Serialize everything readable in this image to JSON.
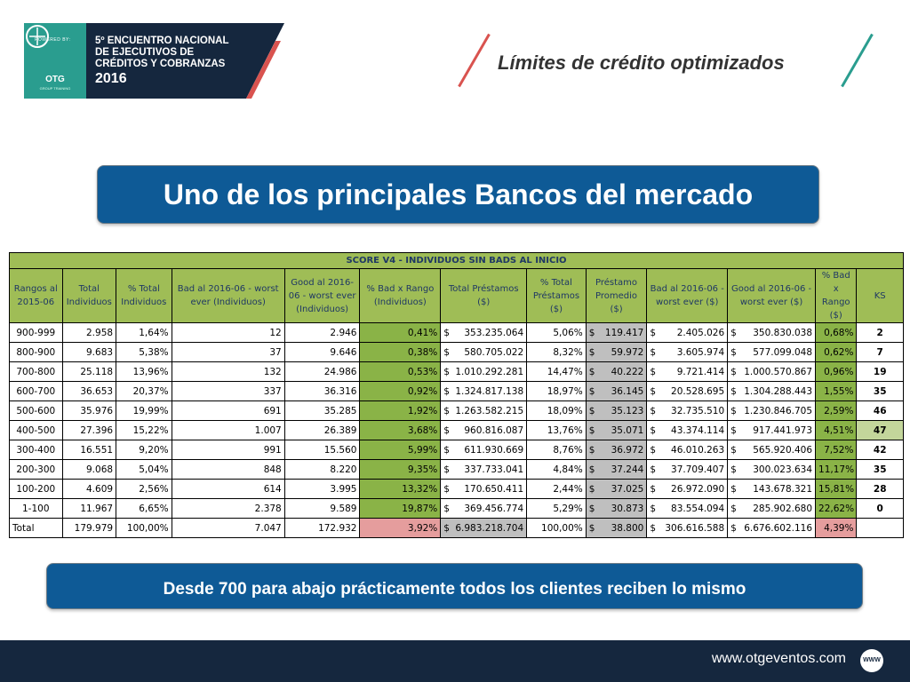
{
  "logo": {
    "powered_by": "POWERED BY:",
    "brand": "OTG",
    "brand_sub": "GROUP TRAINING",
    "event_lines": [
      "5º ENCUENTRO NACIONAL",
      "DE EJECUTIVOS DE",
      "CRÉDITOS Y COBRANZAS"
    ],
    "event_year": "2016"
  },
  "header": {
    "title": "Límites de crédito optimizados"
  },
  "banner_top": "Uno de los principales Bancos del mercado",
  "table": {
    "title": "SCORE V4 - INDIVIDUOS SIN BADS AL INICIO",
    "columns": [
      "Rangos al 2015-06",
      "Total Individuos",
      "% Total Individuos",
      "Bad al 2016-06 - worst ever (Individuos)",
      "Good al 2016-06 - worst ever (Individuos)",
      "% Bad x Rango (Individuos)",
      "Total Préstamos ($)",
      "% Total Préstamos ($)",
      "Préstamo Promedio ($)",
      "Bad al 2016-06 - worst ever ($)",
      "Good al 2016-06 - worst ever ($)",
      "% Bad x Rango ($)",
      "KS"
    ],
    "rows": [
      [
        "900-999",
        "2.958",
        "1,64%",
        "12",
        "2.946",
        "0,41%",
        "353.235.064",
        "5,06%",
        "119.417",
        "2.405.026",
        "350.830.038",
        "0,68%",
        "2"
      ],
      [
        "800-900",
        "9.683",
        "5,38%",
        "37",
        "9.646",
        "0,38%",
        "580.705.022",
        "8,32%",
        "59.972",
        "3.605.974",
        "577.099.048",
        "0,62%",
        "7"
      ],
      [
        "700-800",
        "25.118",
        "13,96%",
        "132",
        "24.986",
        "0,53%",
        "1.010.292.281",
        "14,47%",
        "40.222",
        "9.721.414",
        "1.000.570.867",
        "0,96%",
        "19"
      ],
      [
        "600-700",
        "36.653",
        "20,37%",
        "337",
        "36.316",
        "0,92%",
        "1.324.817.138",
        "18,97%",
        "36.145",
        "20.528.695",
        "1.304.288.443",
        "1,55%",
        "35"
      ],
      [
        "500-600",
        "35.976",
        "19,99%",
        "691",
        "35.285",
        "1,92%",
        "1.263.582.215",
        "18,09%",
        "35.123",
        "32.735.510",
        "1.230.846.705",
        "2,59%",
        "46"
      ],
      [
        "400-500",
        "27.396",
        "15,22%",
        "1.007",
        "26.389",
        "3,68%",
        "960.816.087",
        "13,76%",
        "35.071",
        "43.374.114",
        "917.441.973",
        "4,51%",
        "47"
      ],
      [
        "300-400",
        "16.551",
        "9,20%",
        "991",
        "15.560",
        "5,99%",
        "611.930.669",
        "8,76%",
        "36.972",
        "46.010.263",
        "565.920.406",
        "7,52%",
        "42"
      ],
      [
        "200-300",
        "9.068",
        "5,04%",
        "848",
        "8.220",
        "9,35%",
        "337.733.041",
        "4,84%",
        "37.244",
        "37.709.407",
        "300.023.634",
        "11,17%",
        "35"
      ],
      [
        "100-200",
        "4.609",
        "2,56%",
        "614",
        "3.995",
        "13,32%",
        "170.650.411",
        "2,44%",
        "37.025",
        "26.972.090",
        "143.678.321",
        "15,81%",
        "28"
      ],
      [
        "1-100",
        "11.967",
        "6,65%",
        "2.378",
        "9.589",
        "19,87%",
        "369.456.774",
        "5,29%",
        "30.873",
        "83.554.094",
        "285.902.680",
        "22,62%",
        "0"
      ]
    ],
    "total": [
      "Total",
      "179.979",
      "100,00%",
      "7.047",
      "172.932",
      "3,92%",
      "6.983.218.704",
      "100,00%",
      "38.800",
      "306.616.588",
      "6.676.602.116",
      "4,39%",
      ""
    ],
    "currency_symbol": "$",
    "highlight_ks_row": 5
  },
  "banner_bottom": "Desde 700 para abajo prácticamente todos los clientes reciben lo mismo",
  "footer": {
    "url": "www.otgeventos.com",
    "icon_label": "WWW"
  },
  "colors": {
    "green_header": "#9fbd56",
    "green_col": "#8ab347",
    "gray_col": "#bfbfbf",
    "pink_total": "#e59d9d",
    "banner_blue": "#0e5a96",
    "footer_navy": "#15273e"
  }
}
